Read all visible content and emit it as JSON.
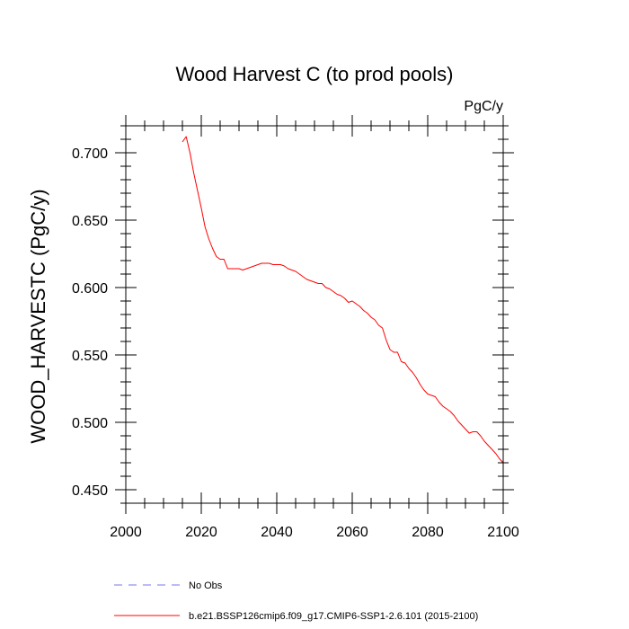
{
  "chart_data": {
    "type": "line",
    "title": "Wood Harvest C (to prod pools)",
    "units_label": "PgC/y",
    "xlabel": "",
    "ylabel": "WOOD_HARVESTC  (PgC/y)",
    "xlim": [
      2000,
      2100
    ],
    "ylim": [
      0.44,
      0.72
    ],
    "x_ticks": [
      2000,
      2020,
      2040,
      2060,
      2080,
      2100
    ],
    "x_tick_labels": [
      "2000",
      "2020",
      "2040",
      "2060",
      "2080",
      "2100"
    ],
    "y_ticks": [
      0.45,
      0.5,
      0.55,
      0.6,
      0.65,
      0.7
    ],
    "y_tick_labels": [
      "0.450",
      "0.500",
      "0.550",
      "0.600",
      "0.650",
      "0.700"
    ],
    "grid": false,
    "legend_position": "bottom",
    "legend": [
      {
        "label": "No Obs",
        "color": "#7777ee",
        "dash": "dashed"
      },
      {
        "label": "b.e21.BSSP126cmip6.f09_g17.CMIP6-SSP1-2.6.101 (2015-2100)",
        "color": "#ff0000",
        "dash": "solid"
      }
    ],
    "series": [
      {
        "name": "b.e21.BSSP126cmip6.f09_g17.CMIP6-SSP1-2.6.101 (2015-2100)",
        "color": "#ff0000",
        "x": [
          2015,
          2016,
          2017,
          2018,
          2019,
          2020,
          2021,
          2022,
          2023,
          2024,
          2025,
          2026,
          2027,
          2028,
          2029,
          2030,
          2031,
          2032,
          2033,
          2034,
          2035,
          2036,
          2037,
          2038,
          2039,
          2040,
          2041,
          2042,
          2043,
          2044,
          2045,
          2046,
          2047,
          2048,
          2049,
          2050,
          2051,
          2052,
          2053,
          2054,
          2055,
          2056,
          2057,
          2058,
          2059,
          2060,
          2061,
          2062,
          2063,
          2064,
          2065,
          2066,
          2067,
          2068,
          2069,
          2070,
          2071,
          2072,
          2073,
          2074,
          2075,
          2076,
          2077,
          2078,
          2079,
          2080,
          2081,
          2082,
          2083,
          2084,
          2085,
          2086,
          2087,
          2088,
          2089,
          2090,
          2091,
          2092,
          2093,
          2094,
          2095,
          2096,
          2097,
          2098,
          2099,
          2100
        ],
        "y": [
          0.708,
          0.712,
          0.7,
          0.685,
          0.672,
          0.659,
          0.645,
          0.636,
          0.629,
          0.623,
          0.621,
          0.621,
          0.614,
          0.614,
          0.614,
          0.614,
          0.613,
          0.614,
          0.615,
          0.616,
          0.617,
          0.618,
          0.618,
          0.618,
          0.617,
          0.617,
          0.617,
          0.616,
          0.614,
          0.613,
          0.612,
          0.61,
          0.608,
          0.606,
          0.605,
          0.604,
          0.603,
          0.603,
          0.6,
          0.599,
          0.597,
          0.595,
          0.594,
          0.592,
          0.589,
          0.59,
          0.588,
          0.586,
          0.583,
          0.581,
          0.578,
          0.576,
          0.572,
          0.57,
          0.561,
          0.554,
          0.552,
          0.552,
          0.545,
          0.544,
          0.54,
          0.537,
          0.533,
          0.528,
          0.524,
          0.521,
          0.52,
          0.519,
          0.515,
          0.512,
          0.51,
          0.508,
          0.505,
          0.501,
          0.498,
          0.495,
          0.492,
          0.493,
          0.493,
          0.49,
          0.486,
          0.483,
          0.48,
          0.477,
          0.473,
          0.47
        ]
      }
    ]
  }
}
